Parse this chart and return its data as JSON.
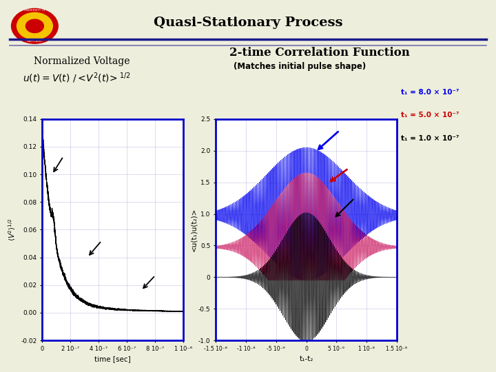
{
  "title": "Quasi-Stationary Process",
  "title_fontsize": 14,
  "bg_color": "#eeeedc",
  "separator_color1": "#1a1a8c",
  "separator_color2": "#7070b0",
  "left_label_line1": "Normalized Voltage",
  "left_label_line2": "u(t)=V(t) /<V²(t)>¹ᐟ²",
  "right_title": "2-time Correlation Function",
  "right_subtitle": "(Matches initial pulse shape)",
  "left_plot": {
    "xlim": [
      0,
      1e-06
    ],
    "ylim": [
      -0.02,
      0.14
    ],
    "xlabel": "time [sec]",
    "ylabel": "<V²>¹ᐟ²",
    "xticks": [
      0,
      2e-07,
      4e-07,
      6e-07,
      8e-07,
      1e-06
    ],
    "xtick_labels": [
      "0",
      "2 10⁻⁷",
      "4 10⁻⁷",
      "6 10⁻⁷",
      "8 10⁻⁷",
      "1 10⁻⁶"
    ],
    "yticks": [
      -0.02,
      0,
      0.02,
      0.04,
      0.06,
      0.08,
      0.1,
      0.12,
      0.14
    ],
    "border_color": "#0000cc"
  },
  "right_plot": {
    "xlim": [
      -1.5e-08,
      1.5e-08
    ],
    "ylim": [
      -1.0,
      2.5
    ],
    "xlabel": "t₁-t₂",
    "ylabel": "<u(t₁)u(t₂)>",
    "xticks": [
      -1.5e-08,
      -1e-08,
      -5e-09,
      0,
      5e-09,
      1e-08,
      1.5e-08
    ],
    "xtick_labels": [
      "-1.5 10⁻⁸",
      "-1 10⁻⁸",
      "-5 10⁻⁹",
      "0",
      "5 10⁻⁹",
      "1 10⁻⁸",
      "1.5 10⁻⁸"
    ],
    "yticks": [
      -1.0,
      -0.5,
      0,
      0.5,
      1.0,
      1.5,
      2.0,
      2.5
    ],
    "border_color": "#0000cc",
    "color_blue": "#0000ee",
    "color_red": "#cc2266",
    "color_black": "#000000",
    "label_blue": "t₁ = 8.0 × 10⁻⁷",
    "label_red": "t₁ = 5.0 × 10⁻⁷",
    "label_black": "t₁ = 1.0 × 10⁻⁷"
  }
}
